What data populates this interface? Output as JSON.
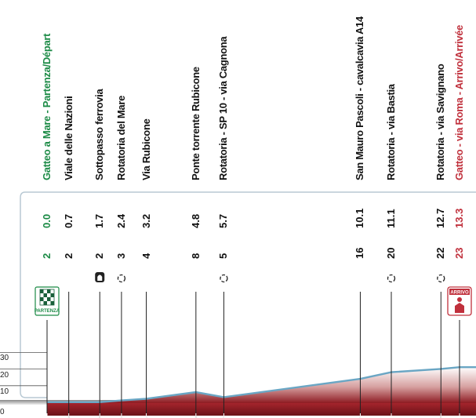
{
  "profile": {
    "y_axis_ticks": [
      "0",
      "10",
      "20",
      "30"
    ],
    "start_badge": "PARTENZA",
    "finish_badge": "ARRIVO",
    "points": [
      {
        "name": "Gatteo a Mare - Partenza/Départ",
        "altitude": "2",
        "km": "0.0",
        "kind": "start",
        "icon": null
      },
      {
        "name": "Viale delle Nazioni",
        "altitude": "2",
        "km": "0.7",
        "kind": "normal",
        "icon": null
      },
      {
        "name": "Sottopasso ferrovia",
        "altitude": "2",
        "km": "1.7",
        "kind": "normal",
        "icon": "underpass-icon"
      },
      {
        "name": "Rotatoria del Mare",
        "altitude": "3",
        "km": "2.4",
        "kind": "normal",
        "icon": "roundabout-icon"
      },
      {
        "name": "Via Rubicone",
        "altitude": "4",
        "km": "3.2",
        "kind": "normal",
        "icon": null
      },
      {
        "name": "Ponte torrente Rubicone",
        "altitude": "8",
        "km": "4.8",
        "kind": "normal",
        "icon": null
      },
      {
        "name": "Rotatoria - SP 10 - via Cagnona",
        "altitude": "5",
        "km": "5.7",
        "kind": "normal",
        "icon": "roundabout-icon"
      },
      {
        "name": "San Mauro Pascoli - cavalcavia A14",
        "altitude": "16",
        "km": "10.1",
        "kind": "normal",
        "icon": null
      },
      {
        "name": "Rotatoria - via Bastia",
        "altitude": "20",
        "km": "11.1",
        "kind": "normal",
        "icon": "roundabout-icon"
      },
      {
        "name": "Rotatoria - via Savignano",
        "altitude": "22",
        "km": "12.7",
        "kind": "normal",
        "icon": "roundabout-icon"
      },
      {
        "name": "Gatteo - via Roma - Arrivo/Arrivée",
        "altitude": "23",
        "km": "13.3",
        "kind": "finish",
        "icon": null
      }
    ]
  },
  "colors": {
    "start": "#1b8a45",
    "finish": "#c0303c",
    "normal": "#111111",
    "line": "#6aa6c4",
    "fill": "#8e1b22"
  }
}
